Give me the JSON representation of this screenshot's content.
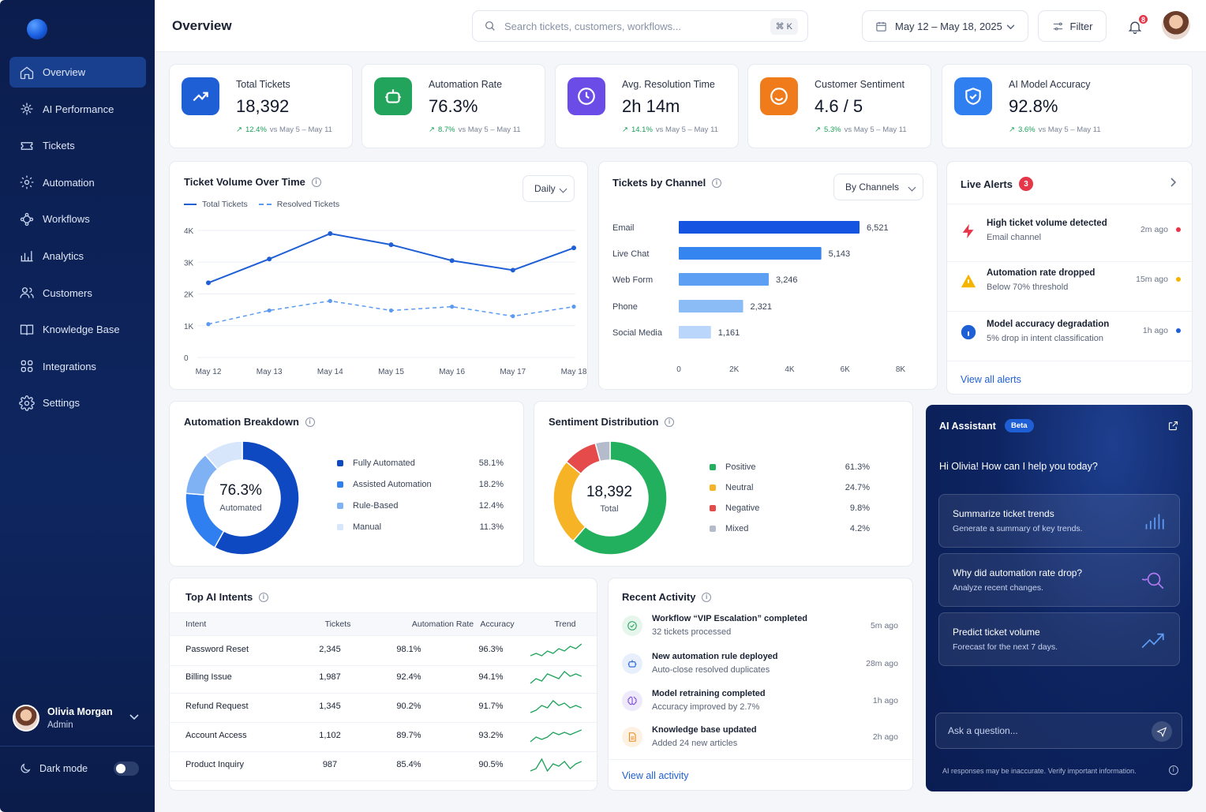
{
  "sidebar": {
    "items": [
      {
        "label": "Overview",
        "icon": "home-icon"
      },
      {
        "label": "AI Performance",
        "icon": "sparkle-icon"
      },
      {
        "label": "Tickets",
        "icon": "ticket-icon"
      },
      {
        "label": "Automation",
        "icon": "gear-icon"
      },
      {
        "label": "Workflows",
        "icon": "workflow-icon"
      },
      {
        "label": "Analytics",
        "icon": "analytics-icon"
      },
      {
        "label": "Customers",
        "icon": "customers-icon"
      },
      {
        "label": "Knowledge Base",
        "icon": "book-icon"
      },
      {
        "label": "Integrations",
        "icon": "grid-icon"
      },
      {
        "label": "Settings",
        "icon": "settings-icon"
      }
    ],
    "user": {
      "name": "Olivia Morgan",
      "role": "Admin"
    },
    "dark_mode_label": "Dark mode"
  },
  "header": {
    "title": "Overview",
    "search_placeholder": "Search tickets, customers, workflows...",
    "search_shortcut": "⌘ K",
    "date_range": "May 12 – May 18, 2025",
    "filter_label": "Filter",
    "notification_count": "8"
  },
  "kpis": [
    {
      "label": "Total Tickets",
      "value": "18,392",
      "delta": "12.4%",
      "compare": "vs May 5 – May 11",
      "color": "#1f5fd6",
      "icon": "trend-up-icon"
    },
    {
      "label": "Automation Rate",
      "value": "76.3%",
      "delta": "8.7%",
      "compare": "vs May 5 – May 11",
      "color": "#22a45d",
      "icon": "robot-icon"
    },
    {
      "label": "Avg. Resolution Time",
      "value": "2h 14m",
      "delta": "14.1%",
      "compare": "vs May 5 – May 11",
      "color": "#6b4ce6",
      "icon": "clock-icon"
    },
    {
      "label": "Customer Sentiment",
      "value": "4.6 / 5",
      "delta": "5.3%",
      "compare": "vs May 5 – May 11",
      "color": "#f07b1a",
      "icon": "smile-icon"
    },
    {
      "label": "AI Model Accuracy",
      "value": "92.8%",
      "delta": "3.6%",
      "compare": "vs May 5 – May 11",
      "color": "#2f7ff0",
      "icon": "shield-icon"
    }
  ],
  "ticket_volume": {
    "title": "Ticket Volume Over Time",
    "period": "Daily",
    "legend": [
      "Total Tickets",
      "Resolved Tickets"
    ]
  },
  "channels": {
    "title": "Tickets by Channel",
    "grouping": "By Channels",
    "value_labels": [
      "6,521",
      "5,143",
      "3,246",
      "2,321",
      "1,161"
    ]
  },
  "alerts": {
    "title": "Live Alerts",
    "count": "3",
    "items": [
      {
        "title": "High ticket volume detected",
        "sub": "Email channel",
        "time": "2m ago",
        "color": "#e5364a",
        "icon": "bolt-icon"
      },
      {
        "title": "Automation rate dropped",
        "sub": "Below 70% threshold",
        "time": "15m ago",
        "color": "#f5b400",
        "icon": "warning-icon"
      },
      {
        "title": "Model accuracy degradation",
        "sub": "5% drop in intent classification",
        "time": "1h ago",
        "color": "#1f5fd6",
        "icon": "info-circle-icon"
      }
    ],
    "view_all": "View all alerts"
  },
  "automation": {
    "title": "Automation Breakdown",
    "center_value": "76.3%",
    "center_label": "Automated",
    "items": [
      {
        "label": "Fully Automated",
        "value": "58.1%",
        "pct": 58.1,
        "color": "#0f49c2"
      },
      {
        "label": "Assisted Automation",
        "value": "18.2%",
        "pct": 18.2,
        "color": "#2f7ff0"
      },
      {
        "label": "Rule-Based",
        "value": "12.4%",
        "pct": 12.4,
        "color": "#7fb2f5"
      },
      {
        "label": "Manual",
        "value": "11.3%",
        "pct": 11.3,
        "color": "#d8e6fb"
      }
    ]
  },
  "sentiment": {
    "title": "Sentiment Distribution",
    "center_value": "18,392",
    "center_label": "Total",
    "items": [
      {
        "label": "Positive",
        "value": "61.3%",
        "pct": 61.3,
        "color": "#22b05e"
      },
      {
        "label": "Neutral",
        "value": "24.7%",
        "pct": 24.7,
        "color": "#f5b325"
      },
      {
        "label": "Negative",
        "value": "9.8%",
        "pct": 9.8,
        "color": "#e54b4b"
      },
      {
        "label": "Mixed",
        "value": "4.2%",
        "pct": 4.2,
        "color": "#b4bccb"
      }
    ]
  },
  "intents": {
    "title": "Top AI Intents",
    "columns": [
      "Intent",
      "Tickets",
      "Automation Rate",
      "Accuracy",
      "Trend"
    ],
    "rows": [
      {
        "intent": "Password Reset",
        "tickets": "2,345",
        "rate": "98.1%",
        "accuracy": "96.3%"
      },
      {
        "intent": "Billing Issue",
        "tickets": "1,987",
        "rate": "92.4%",
        "accuracy": "94.1%"
      },
      {
        "intent": "Refund Request",
        "tickets": "1,345",
        "rate": "90.2%",
        "accuracy": "91.7%"
      },
      {
        "intent": "Account Access",
        "tickets": "1,102",
        "rate": "89.7%",
        "accuracy": "93.2%"
      },
      {
        "intent": "Product Inquiry",
        "tickets": "987",
        "rate": "85.4%",
        "accuracy": "90.5%"
      }
    ]
  },
  "activity": {
    "title": "Recent Activity",
    "items": [
      {
        "title": "Workflow “VIP Escalation” completed",
        "sub": "32 tickets processed",
        "time": "5m ago",
        "color": "#22a45d",
        "bg": "#e6f6ec",
        "icon": "check-circle-icon"
      },
      {
        "title": "New automation rule deployed",
        "sub": "Auto-close resolved duplicates",
        "time": "28m ago",
        "color": "#1f5fd6",
        "bg": "#e7effc",
        "icon": "robot-icon"
      },
      {
        "title": "Model retraining completed",
        "sub": "Accuracy improved by 2.7%",
        "time": "1h ago",
        "color": "#7a4ce0",
        "bg": "#efe9fc",
        "icon": "brain-icon"
      },
      {
        "title": "Knowledge base updated",
        "sub": "Added 24 new articles",
        "time": "2h ago",
        "color": "#e88a1a",
        "bg": "#fdf1e3",
        "icon": "document-icon"
      }
    ],
    "view_all": "View all activity"
  },
  "assistant": {
    "title": "AI Assistant",
    "badge": "Beta",
    "greeting": "Hi Olivia! How can I help you today?",
    "suggestions": [
      {
        "title": "Summarize ticket trends",
        "sub": "Generate a summary of key trends.",
        "icon": "bar-chart-icon"
      },
      {
        "title": "Why did automation rate drop?",
        "sub": "Analyze recent changes.",
        "icon": "magnifier-icon"
      },
      {
        "title": "Predict ticket volume",
        "sub": "Forecast for the next 7 days.",
        "icon": "trend-up-icon"
      }
    ],
    "input_placeholder": "Ask a question...",
    "disclaimer": "AI responses may be inaccurate. Verify important information."
  },
  "chart_data": [
    {
      "type": "line",
      "title": "Ticket Volume Over Time",
      "x": [
        "May 12",
        "May 13",
        "May 14",
        "May 15",
        "May 16",
        "May 17",
        "May 18"
      ],
      "series": [
        {
          "name": "Total Tickets",
          "values": [
            2350,
            3100,
            3900,
            3550,
            3050,
            2750,
            3450
          ],
          "color": "#1f5fd6",
          "style": "solid"
        },
        {
          "name": "Resolved Tickets",
          "values": [
            1050,
            1480,
            1780,
            1480,
            1600,
            1300,
            1600
          ],
          "color": "#5a9af0",
          "style": "dashed"
        }
      ],
      "ylim": [
        0,
        4000
      ],
      "yticks": [
        "0",
        "1K",
        "2K",
        "3K",
        "4K"
      ],
      "grid": true,
      "legend": "top-left"
    },
    {
      "type": "bar",
      "orientation": "horizontal",
      "title": "Tickets by Channel",
      "categories": [
        "Email",
        "Live Chat",
        "Web Form",
        "Phone",
        "Social Media"
      ],
      "values": [
        6521,
        5143,
        3246,
        2321,
        1161
      ],
      "colors": [
        "#1454e0",
        "#3585f0",
        "#5d9ff3",
        "#8bbcf6",
        "#bad6fa"
      ],
      "xlim": [
        0,
        8000
      ],
      "xticks": [
        "0",
        "2K",
        "4K",
        "6K",
        "8K"
      ]
    },
    {
      "type": "pie",
      "title": "Automation Breakdown",
      "categories": [
        "Fully Automated",
        "Assisted Automation",
        "Rule-Based",
        "Manual"
      ],
      "values": [
        58.1,
        18.2,
        12.4,
        11.3
      ]
    },
    {
      "type": "pie",
      "title": "Sentiment Distribution",
      "categories": [
        "Positive",
        "Neutral",
        "Negative",
        "Mixed"
      ],
      "values": [
        61.3,
        24.7,
        9.8,
        4.2
      ]
    }
  ]
}
